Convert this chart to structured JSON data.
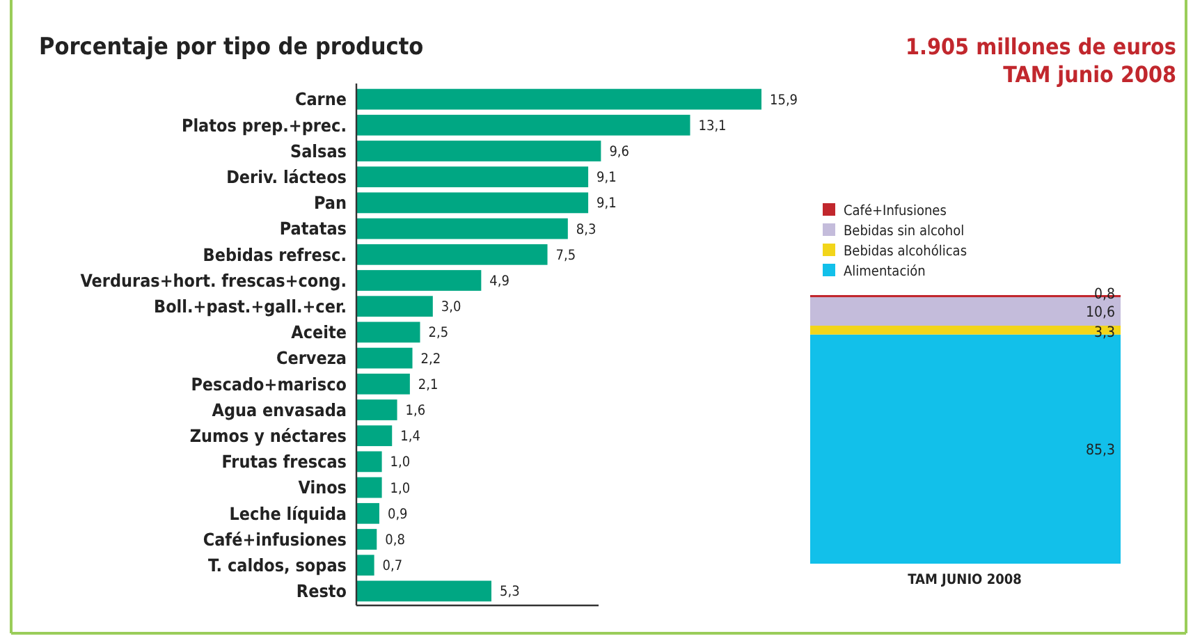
{
  "chart_data": [
    {
      "type": "bar",
      "orientation": "horizontal",
      "title": "Porcentaje por tipo de producto",
      "categories": [
        "Carne",
        "Platos prep.+prec.",
        "Salsas",
        "Deriv. lácteos",
        "Pan",
        "Patatas",
        "Bebidas refresc.",
        "Verduras+hort. frescas+cong.",
        "Boll.+past.+gall.+cer.",
        "Aceite",
        "Cerveza",
        "Pescado+marisco",
        "Agua envasada",
        "Zumos y néctares",
        "Frutas frescas",
        "Vinos",
        "Leche líquida",
        "Café+infusiones",
        "T. caldos, sopas",
        "Resto"
      ],
      "values": [
        15.9,
        13.1,
        9.6,
        9.1,
        9.1,
        8.3,
        7.5,
        4.9,
        3.0,
        2.5,
        2.2,
        2.1,
        1.6,
        1.4,
        1.0,
        1.0,
        0.9,
        0.8,
        0.7,
        5.3
      ],
      "value_labels": [
        "15,9",
        "13,1",
        "9,6",
        "9,1",
        "9,1",
        "8,3",
        "7,5",
        "4,9",
        "3,0",
        "2,5",
        "2,2",
        "2,1",
        "1,6",
        "1,4",
        "1,0",
        "1,0",
        "0,9",
        "0,8",
        "0,7",
        "5,3"
      ],
      "color": "#00a783"
    },
    {
      "type": "bar",
      "stacked": true,
      "title": "1.905 millones de euros",
      "subtitle": "TAM junio 2008",
      "categories": [
        null
      ],
      "xlabel": "TAM JUNIO 2008",
      "legend": "top",
      "series": [
        {
          "name": "Alimentación",
          "color": "#12c0ea",
          "values": [
            85.3
          ],
          "value_labels": [
            "85,3"
          ]
        },
        {
          "name": "Bebidas alcohólicas",
          "color": "#f2d51a",
          "values": [
            3.3
          ],
          "value_labels": [
            "3,3"
          ]
        },
        {
          "name": "Bebidas sin alcohol",
          "color": "#c4bcdb",
          "values": [
            10.6
          ],
          "value_labels": [
            "10,6"
          ]
        },
        {
          "name": "Café+Infusiones",
          "color": "#c1272d",
          "values": [
            0.8
          ],
          "value_labels": [
            "0,8"
          ]
        }
      ]
    }
  ]
}
